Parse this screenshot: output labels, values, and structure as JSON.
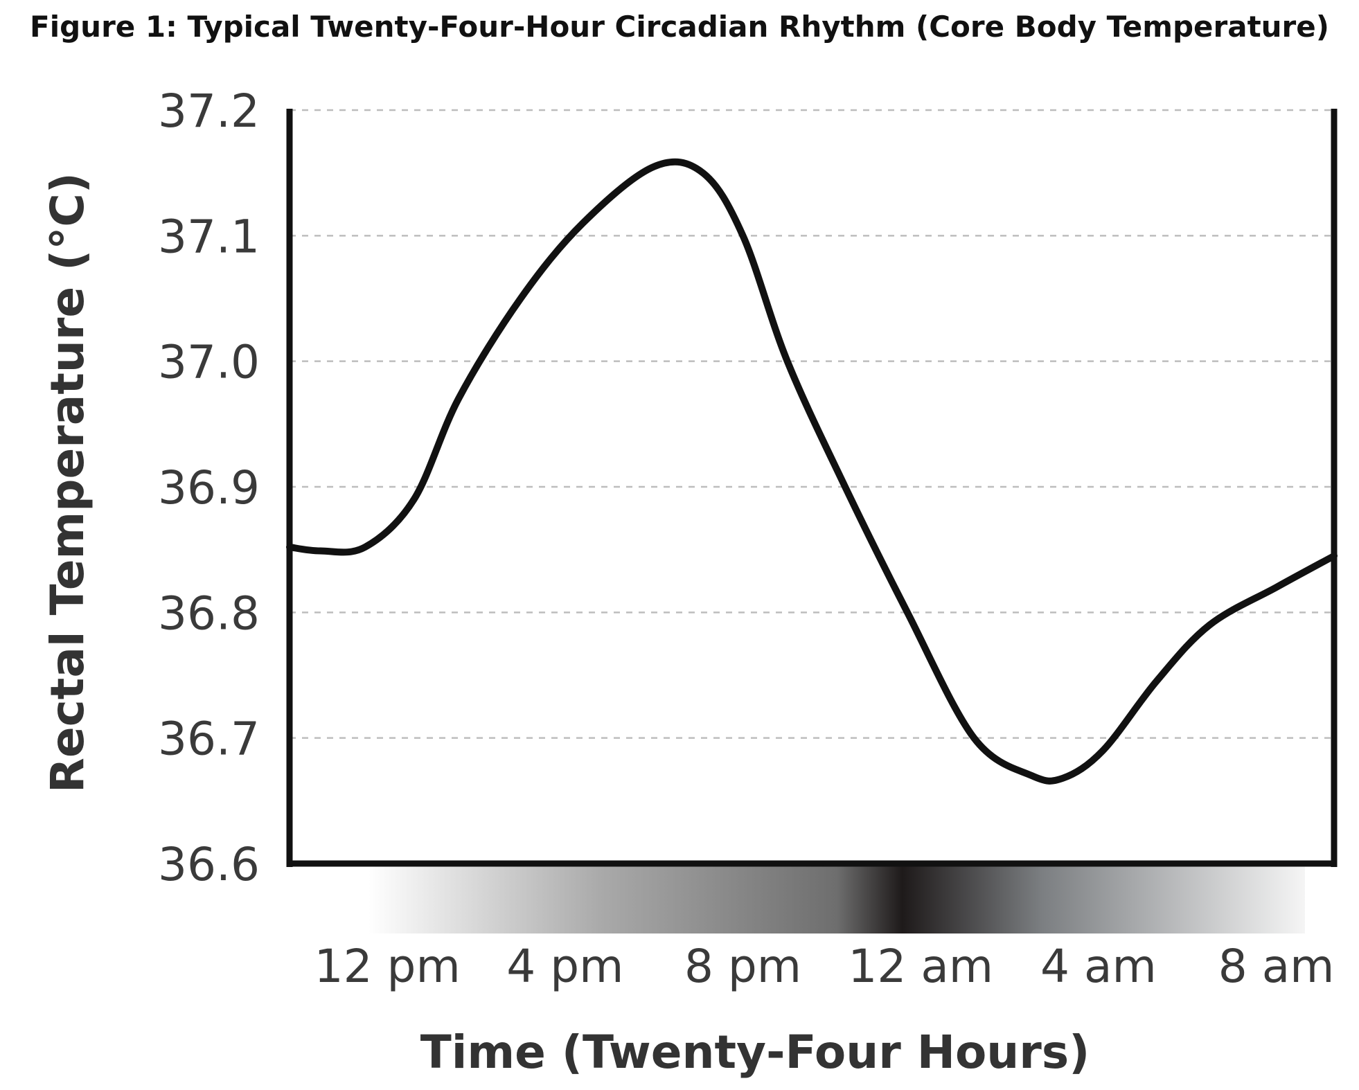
{
  "chart_data": {
    "type": "line",
    "title": "Figure 1: Typical Twenty-Four-Hour Circadian Rhythm (Core Body Temperature)",
    "xlabel": "Time (Twenty-Four Hours)",
    "ylabel": "Rectal Temperature (°C)",
    "x_tick_labels": [
      "12 pm",
      "4 pm",
      "8 pm",
      "12 am",
      "4 am",
      "8 am"
    ],
    "x_ticks_hours_from_12pm": [
      0,
      4,
      8,
      12,
      16,
      20
    ],
    "xlim_hours_from_12pm": [
      -2.2,
      21.3
    ],
    "ylim": [
      36.6,
      37.2
    ],
    "y_ticks": [
      "36.6",
      "36.7",
      "36.8",
      "36.9",
      "37.0",
      "37.1",
      "37.2"
    ],
    "grid": "horizontal dashed",
    "background_band": "light-to-dark-to-light gradient below x-axis, darkest near 12 am",
    "series": [
      {
        "x": [
          -2.2,
          -1.5,
          -0.5,
          0.6,
          1.6,
          3.0,
          4.4,
          6.0,
          7.1,
          8.0,
          9.0,
          10.3,
          11.7,
          13.2,
          14.5,
          15.2,
          16.1,
          17.3,
          18.5,
          20.0,
          21.3
        ],
        "values": [
          36.852,
          36.849,
          36.852,
          36.89,
          36.97,
          37.05,
          37.11,
          37.155,
          37.15,
          37.1,
          37.0,
          36.9,
          36.8,
          36.7,
          36.67,
          36.668,
          36.69,
          36.745,
          36.79,
          36.82,
          36.845
        ]
      }
    ]
  }
}
